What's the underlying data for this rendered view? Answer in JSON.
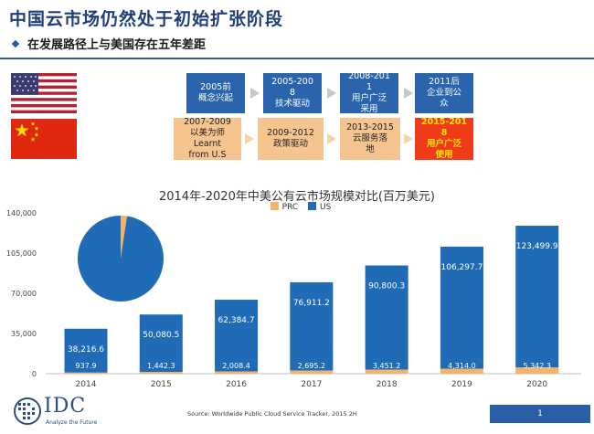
{
  "header": {
    "title": "中国云市场仍然处于初始扩张阶段",
    "subtitle": "在发展路径上与美国存在五年差距"
  },
  "timeline": {
    "us": [
      "2005前\n概念兴起",
      "2005-200\n8\n技术驱动",
      "2008-201\n1\n用户广泛\n采用",
      "2011后\n企业到公\n众"
    ],
    "cn": [
      "2007-2009\n以美为师\nLearnt\nfrom U.S",
      "2009-2012\n政策驱动",
      "2013-2015\n云服务落\n地",
      "2015-201\n8\n用户广泛\n使用"
    ],
    "highlight_color": "#f03a1a"
  },
  "chart_data": {
    "type": "bar",
    "title": "2014年-2020年中美公有云市场规模对比(百万美元)",
    "categories": [
      "2014",
      "2015",
      "2016",
      "2017",
      "2018",
      "2019",
      "2020"
    ],
    "series": [
      {
        "name": "PRC",
        "color": "#f5b26b",
        "values": [
          937.9,
          1442.3,
          2008.4,
          2695.2,
          3451.2,
          4314.0,
          5342.3
        ]
      },
      {
        "name": "US",
        "color": "#1f6bb5",
        "values": [
          38216.6,
          50080.5,
          62384.7,
          76911.2,
          90800.3,
          106297.7,
          123499.9
        ]
      }
    ],
    "us_labels": [
      "38,216.6",
      "50,080.5",
      "62,384.7",
      "76,911.2",
      "90,800.3",
      "106,297.7",
      "123,499.9"
    ],
    "prc_labels": [
      "937.9",
      "1,442.3",
      "2,008.4",
      "2,695.2",
      "3,451.2",
      "4,314.0",
      "5,342.3"
    ],
    "yticks": [
      "0",
      "35,000",
      "70,000",
      "105,000",
      "140,000"
    ],
    "ytick_values": [
      0,
      35000,
      70000,
      105000,
      140000
    ],
    "ylim": [
      0,
      140000
    ],
    "stacked": true,
    "grid": false,
    "legend": "top-center",
    "inset_pie": {
      "type": "pie",
      "year": "2014",
      "values": [
        937.9,
        38216.6
      ],
      "colors": [
        "#f5b26b",
        "#1f6bb5"
      ]
    }
  },
  "footer": {
    "logo_text": "IDC",
    "logo_tagline": "Analyze the Future",
    "source": "Source: Worldwide Public Cloud Service Tracker, 2015 2H",
    "page": "1"
  }
}
